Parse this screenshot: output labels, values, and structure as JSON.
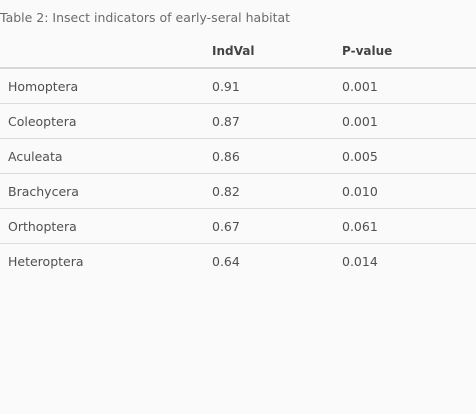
{
  "caption": "Table 2: Insect indicators of early-seral habitat",
  "columns": [
    "",
    "IndVal",
    "P-value"
  ],
  "rows": [
    {
      "taxon": "Homoptera",
      "indval": "0.91",
      "pvalue": "0.001"
    },
    {
      "taxon": "Coleoptera",
      "indval": "0.87",
      "pvalue": "0.001"
    },
    {
      "taxon": "Aculeata",
      "indval": "0.86",
      "pvalue": "0.005"
    },
    {
      "taxon": "Brachycera",
      "indval": "0.82",
      "pvalue": "0.010"
    },
    {
      "taxon": "Orthoptera",
      "indval": "0.67",
      "pvalue": "0.061"
    },
    {
      "taxon": "Heteroptera",
      "indval": "0.64",
      "pvalue": "0.014"
    }
  ]
}
